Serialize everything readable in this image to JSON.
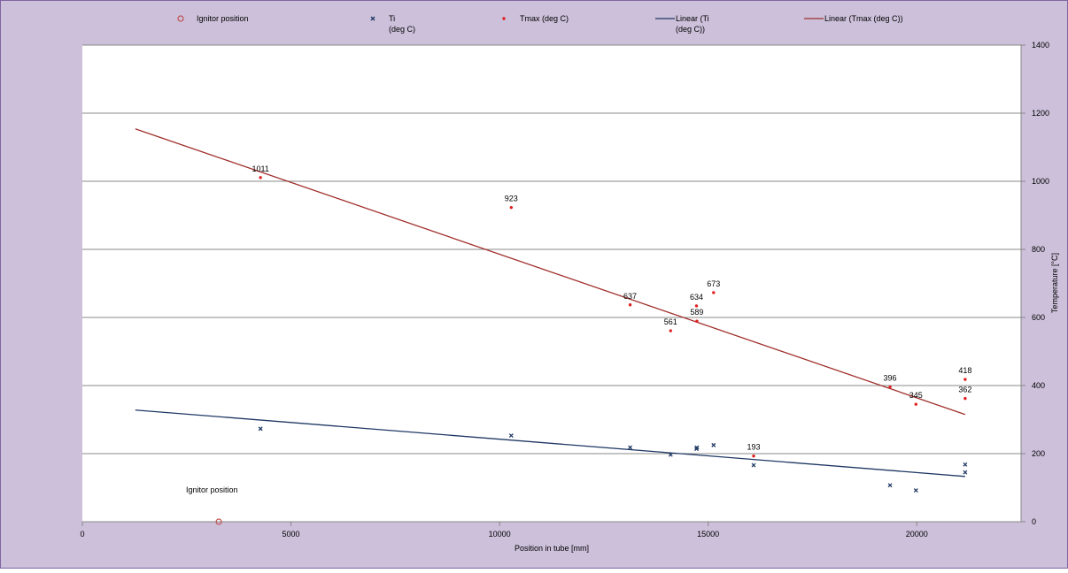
{
  "chart_data": {
    "type": "scatter",
    "xlabel": "Position in tube [mm]",
    "ylabel": "Temperature [°C]",
    "xlim": [
      0,
      22500
    ],
    "ylim": [
      0,
      1400
    ],
    "x_ticks": [
      0,
      5000,
      10000,
      15000,
      20000
    ],
    "y_ticks": [
      0,
      200,
      400,
      600,
      800,
      1000,
      1200,
      1400
    ],
    "grid": "horizontal",
    "y_axis_side": "right",
    "legend_position": "top",
    "legend": [
      {
        "label_lines": [
          "Ignitor position"
        ],
        "marker": "circle",
        "color": "#C0504D"
      },
      {
        "label_lines": [
          "Ti",
          "(deg C)"
        ],
        "marker": "x",
        "color": "#1F3864"
      },
      {
        "label_lines": [
          "Tmax (deg C)"
        ],
        "marker": "dot",
        "color": "#E02020"
      },
      {
        "label_lines": [
          "Linear (Ti",
          "(deg C))"
        ],
        "marker": "line",
        "color": "#1F3864"
      },
      {
        "label_lines": [
          "Linear (Tmax (deg C))"
        ],
        "marker": "line",
        "color": "#A0302C"
      }
    ],
    "annotations": [
      {
        "text": "Ignitor position"
      }
    ],
    "series": [
      {
        "name": "Ignitor position",
        "marker": "circle",
        "color": "#C0504D",
        "points": [
          {
            "x": 3270,
            "y": 0
          }
        ]
      },
      {
        "name": "Ti\n(deg C)",
        "marker": "x",
        "color": "#1F3864",
        "points": [
          {
            "x": 4270,
            "y": 273
          },
          {
            "x": 10280,
            "y": 253
          },
          {
            "x": 13130,
            "y": 218
          },
          {
            "x": 14100,
            "y": 197
          },
          {
            "x": 14720,
            "y": 214
          },
          {
            "x": 14730,
            "y": 218
          },
          {
            "x": 15130,
            "y": 225
          },
          {
            "x": 16090,
            "y": 166
          },
          {
            "x": 19360,
            "y": 107
          },
          {
            "x": 19980,
            "y": 92
          },
          {
            "x": 21160,
            "y": 168
          },
          {
            "x": 21160,
            "y": 145
          }
        ]
      },
      {
        "name": "Tmax (deg C)",
        "marker": "dot",
        "color": "#E02020",
        "points": [
          {
            "x": 4270,
            "y": 1011,
            "label": "1011"
          },
          {
            "x": 10280,
            "y": 923,
            "label": "923"
          },
          {
            "x": 13130,
            "y": 637,
            "label": "637"
          },
          {
            "x": 14100,
            "y": 561,
            "label": "561"
          },
          {
            "x": 14720,
            "y": 634,
            "label": "634"
          },
          {
            "x": 14730,
            "y": 589,
            "label": "589"
          },
          {
            "x": 15130,
            "y": 673,
            "label": "673"
          },
          {
            "x": 16090,
            "y": 193,
            "label": "193"
          },
          {
            "x": 19360,
            "y": 396,
            "label": "396"
          },
          {
            "x": 19980,
            "y": 345,
            "label": "345"
          },
          {
            "x": 21160,
            "y": 418,
            "label": "418"
          },
          {
            "x": 21160,
            "y": 362,
            "label": "362"
          }
        ]
      },
      {
        "name": "Linear (Ti (deg C))",
        "type": "line",
        "color": "#1F3864",
        "points": [
          {
            "x": 1270,
            "y": 328
          },
          {
            "x": 21160,
            "y": 133
          }
        ]
      },
      {
        "name": "Linear (Tmax (deg C))",
        "type": "line",
        "color": "#A0302C",
        "points": [
          {
            "x": 1270,
            "y": 1154
          },
          {
            "x": 21160,
            "y": 315
          }
        ]
      }
    ]
  }
}
